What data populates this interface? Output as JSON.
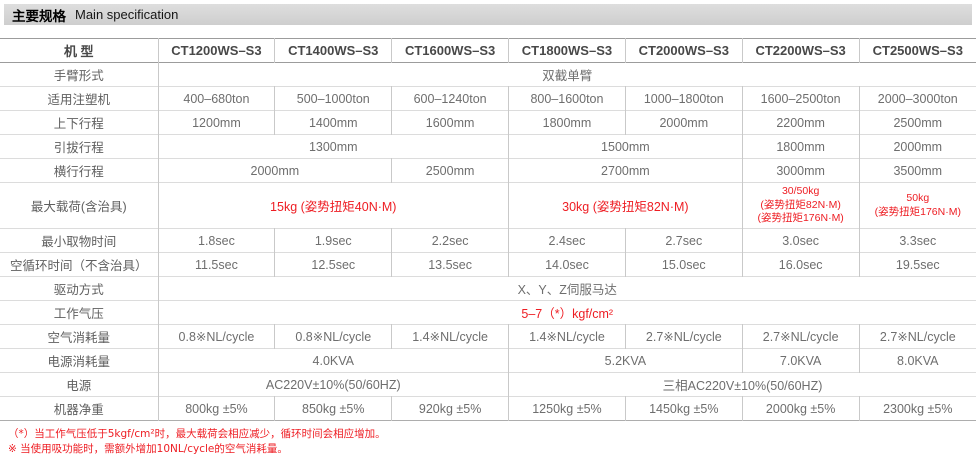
{
  "title_bar": {
    "zh": "主要规格",
    "en": "Main specification"
  },
  "colors": {
    "accent_red": "#ee1d23",
    "title_bar_bg": "#d5d5d5"
  },
  "table": {
    "header": {
      "label": "机 型",
      "models": [
        "CT1200WS–S3",
        "CT1400WS–S3",
        "CT1600WS–S3",
        "CT1800WS–S3",
        "CT2000WS–S3",
        "CT2200WS–S3",
        "CT2500WS–S3"
      ]
    },
    "rows": [
      {
        "label": "手臂形式",
        "cells": [
          {
            "text": "双截单臂"
          }
        ]
      },
      {
        "label": "适用注塑机",
        "cells": [
          {
            "text": "400–680ton"
          },
          {
            "text": "500–1000ton"
          },
          {
            "text": "600–1240ton"
          },
          {
            "text": "800–1600ton"
          },
          {
            "text": "1000–1800ton"
          },
          {
            "text": "1600–2500ton"
          },
          {
            "text": "2000–3000ton"
          }
        ]
      },
      {
        "label": "上下行程",
        "cells": [
          {
            "text": "1200mm"
          },
          {
            "text": "1400mm"
          },
          {
            "text": "1600mm"
          },
          {
            "text": "1800mm"
          },
          {
            "text": "2000mm"
          },
          {
            "text": "2200mm"
          },
          {
            "text": "2500mm"
          }
        ]
      },
      {
        "label": "引拔行程",
        "cells": [
          {
            "text": "1300mm"
          },
          {
            "text": "1500mm"
          },
          {
            "text": "1800mm"
          },
          {
            "text": "2000mm"
          }
        ]
      },
      {
        "label": "横行行程",
        "cells": [
          {
            "text": "2000mm"
          },
          {
            "text": "2500mm"
          },
          {
            "text": "2700mm"
          },
          {
            "text": "3000mm"
          },
          {
            "text": "3500mm"
          }
        ]
      },
      {
        "label": "最大载荷(含治具)",
        "cells": [
          {
            "text": "15kg (姿势扭矩40N·M)"
          },
          {
            "text": "30kg  (姿势扭矩82N·M)"
          },
          {
            "text": "30/50kg\n(姿势扭矩82N·M)\n(姿势扭矩176N·M)"
          },
          {
            "text": "50kg\n(姿势扭矩176N·M)"
          }
        ]
      },
      {
        "label": "最小取物时间",
        "cells": [
          {
            "text": "1.8sec"
          },
          {
            "text": "1.9sec"
          },
          {
            "text": "2.2sec"
          },
          {
            "text": "2.4sec"
          },
          {
            "text": "2.7sec"
          },
          {
            "text": "3.0sec"
          },
          {
            "text": "3.3sec"
          }
        ]
      },
      {
        "label": "空循环时间（不含治具）",
        "cells": [
          {
            "text": "11.5sec"
          },
          {
            "text": "12.5sec"
          },
          {
            "text": "13.5sec"
          },
          {
            "text": "14.0sec"
          },
          {
            "text": "15.0sec"
          },
          {
            "text": "16.0sec"
          },
          {
            "text": "19.5sec"
          }
        ]
      },
      {
        "label": "驱动方式",
        "cells": [
          {
            "text": "X、Y、Z伺服马达"
          }
        ]
      },
      {
        "label": "工作气压",
        "cells": [
          {
            "text": "5–7（*）kgf/cm²"
          }
        ]
      },
      {
        "label": "空气消耗量",
        "cells": [
          {
            "text": "0.8※NL/cycle"
          },
          {
            "text": "0.8※NL/cycle"
          },
          {
            "text": "1.4※NL/cycle"
          },
          {
            "text": "1.4※NL/cycle"
          },
          {
            "text": "2.7※NL/cycle"
          },
          {
            "text": "2.7※NL/cycle"
          },
          {
            "text": "2.7※NL/cycle"
          }
        ]
      },
      {
        "label": "电源消耗量",
        "cells": [
          {
            "text": "4.0KVA"
          },
          {
            "text": "5.2KVA"
          },
          {
            "text": "7.0KVA"
          },
          {
            "text": "8.0KVA"
          }
        ]
      },
      {
        "label": "电源",
        "cells": [
          {
            "text": "AC220V±10%(50/60HZ)"
          },
          {
            "text": "三相AC220V±10%(50/60HZ)"
          }
        ]
      },
      {
        "label": "机器净重",
        "cells": [
          {
            "text": "800kg ±5%"
          },
          {
            "text": "850kg ±5%"
          },
          {
            "text": "920kg ±5%"
          },
          {
            "text": "1250kg ±5%"
          },
          {
            "text": "1450kg ±5%"
          },
          {
            "text": "2000kg ±5%"
          },
          {
            "text": "2300kg ±5%"
          }
        ]
      }
    ]
  },
  "footnotes": [
    "（*）当工作气压低于5kgf/cm²时，最大载荷会相应减少，循环时间会相应增加。",
    "※ 当使用吸功能时，需额外增加10NL/cycle的空气消耗量。"
  ]
}
